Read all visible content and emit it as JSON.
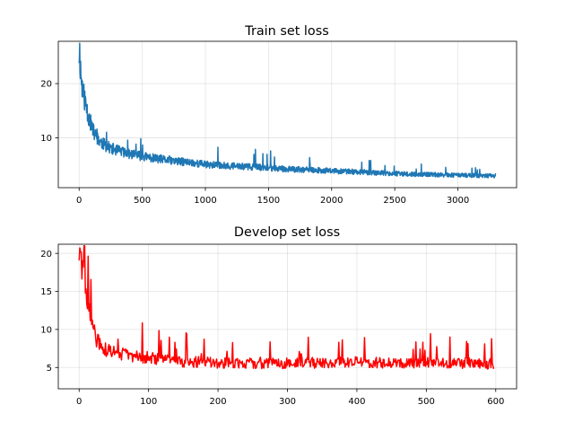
{
  "chart_data": [
    {
      "type": "line",
      "title": "Train set loss",
      "xlabel": "",
      "ylabel": "",
      "xlim": [
        -165,
        3465
      ],
      "ylim": [
        0.8,
        27.8
      ],
      "xticks": [
        0,
        500,
        1000,
        1500,
        2000,
        2500,
        3000
      ],
      "yticks": [
        10,
        20
      ],
      "grid": true,
      "color": "#1f77b4",
      "series": [
        {
          "x": [
            0,
            5,
            10,
            20,
            30,
            50,
            75,
            100,
            125,
            150,
            200,
            250,
            300,
            350,
            400,
            500,
            600,
            700,
            800,
            900,
            1000,
            1200,
            1400,
            1600,
            1800,
            2000,
            2200,
            2400,
            2600,
            2800,
            3000,
            3200,
            3300
          ],
          "values": [
            25.5,
            26.0,
            23.0,
            20.0,
            18.5,
            16.5,
            14.0,
            12.0,
            10.5,
            9.7,
            8.7,
            8.1,
            7.7,
            7.4,
            7.0,
            6.6,
            6.2,
            5.9,
            5.6,
            5.4,
            5.1,
            4.8,
            4.6,
            4.3,
            4.1,
            3.9,
            3.7,
            3.5,
            3.3,
            3.2,
            3.1,
            3.0,
            3.0
          ]
        }
      ]
    },
    {
      "type": "line",
      "title": "Develop set loss",
      "xlabel": "",
      "ylabel": "",
      "xlim": [
        -30,
        630
      ],
      "ylim": [
        2.2,
        21.2
      ],
      "xticks": [
        0,
        100,
        200,
        300,
        400,
        500,
        600
      ],
      "yticks": [
        5,
        10,
        15,
        20
      ],
      "grid": true,
      "color": "#ff0000",
      "series": [
        {
          "x": [
            0,
            2,
            5,
            8,
            12,
            16,
            20,
            25,
            30,
            35,
            40,
            50,
            60,
            70,
            80,
            100,
            120,
            150,
            200,
            250,
            300,
            350,
            400,
            450,
            500,
            550,
            597
          ],
          "values": [
            20.4,
            19.2,
            17.0,
            15.0,
            13.2,
            11.5,
            10.0,
            8.8,
            8.0,
            7.5,
            7.2,
            7.0,
            6.8,
            6.7,
            6.5,
            6.3,
            6.0,
            5.8,
            5.6,
            5.5,
            5.6,
            5.6,
            5.7,
            5.6,
            5.7,
            5.6,
            5.5
          ]
        }
      ]
    }
  ]
}
